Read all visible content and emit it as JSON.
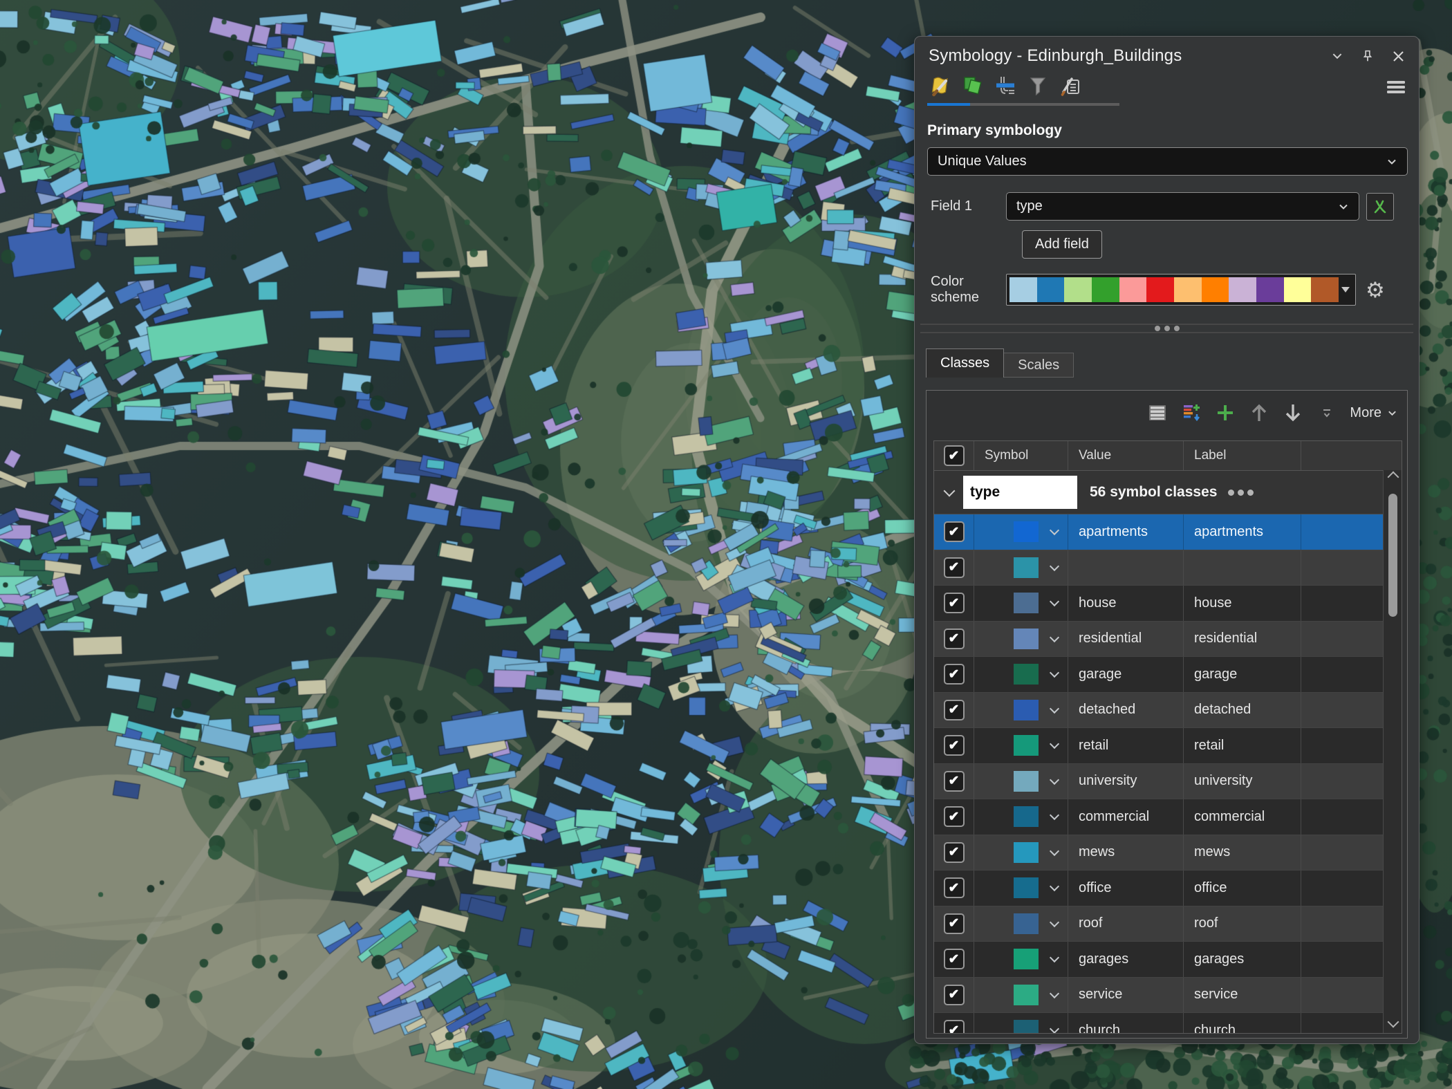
{
  "panel": {
    "title": "Symbology - Edinburgh_Buildings",
    "primary_symbology": {
      "heading": "Primary symbology",
      "method": "Unique Values"
    },
    "field1": {
      "label": "Field 1",
      "value": "type"
    },
    "add_field_label": "Add field",
    "color_scheme": {
      "label": "Color scheme",
      "colors": [
        "#a6cee3",
        "#1f78b4",
        "#b2df8a",
        "#33a02c",
        "#fb9a99",
        "#e31a1c",
        "#fdbf6f",
        "#ff7f00",
        "#cab2d6",
        "#6a3d9a",
        "#ffff99",
        "#b15928"
      ]
    },
    "tabs": {
      "classes": "Classes",
      "scales": "Scales"
    },
    "toolbar": {
      "more": "More"
    },
    "table": {
      "headers": {
        "symbol": "Symbol",
        "value": "Value",
        "label": "Label"
      },
      "group": {
        "field": "type",
        "summary": "56 symbol classes"
      },
      "rows": [
        {
          "checked": true,
          "selected": true,
          "color": "#1267d2",
          "value": "apartments",
          "label": "apartments"
        },
        {
          "checked": true,
          "selected": false,
          "color": "#2b93a8",
          "value": "",
          "label": ""
        },
        {
          "checked": true,
          "selected": false,
          "color": "#4c6d92",
          "value": "house",
          "label": "house"
        },
        {
          "checked": true,
          "selected": false,
          "color": "#6486b8",
          "value": "residential",
          "label": "residential"
        },
        {
          "checked": true,
          "selected": false,
          "color": "#186c4e",
          "value": "garage",
          "label": "garage"
        },
        {
          "checked": true,
          "selected": false,
          "color": "#2b5cb1",
          "value": "detached",
          "label": "detached"
        },
        {
          "checked": true,
          "selected": false,
          "color": "#15997a",
          "value": "retail",
          "label": "retail"
        },
        {
          "checked": true,
          "selected": false,
          "color": "#74a9bd",
          "value": "university",
          "label": "university"
        },
        {
          "checked": true,
          "selected": false,
          "color": "#16688c",
          "value": "commercial",
          "label": "commercial"
        },
        {
          "checked": true,
          "selected": false,
          "color": "#2598bd",
          "value": "mews",
          "label": "mews"
        },
        {
          "checked": true,
          "selected": false,
          "color": "#166c8e",
          "value": "office",
          "label": "office"
        },
        {
          "checked": true,
          "selected": false,
          "color": "#376392",
          "value": "roof",
          "label": "roof"
        },
        {
          "checked": true,
          "selected": false,
          "color": "#17a077",
          "value": "garages",
          "label": "garages"
        },
        {
          "checked": true,
          "selected": false,
          "color": "#2cab84",
          "value": "service",
          "label": "service"
        },
        {
          "checked": true,
          "selected": false,
          "color": "#1c6074",
          "value": "church",
          "label": "church"
        }
      ]
    }
  },
  "icons": {
    "check_glyph": "✔",
    "gear_glyph": "⚙"
  },
  "colors": {
    "accent_blue": "#1976d2",
    "selection_blue": "#1b67b0"
  }
}
